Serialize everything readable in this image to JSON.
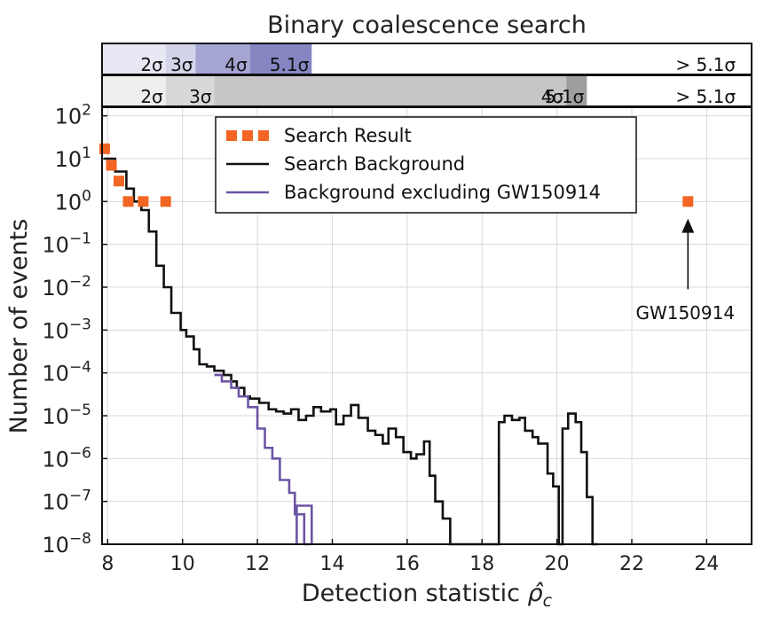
{
  "chart_data": {
    "type": "line",
    "title": "Binary coalescence search",
    "xlabel": "Detection statistic ρ̂_c",
    "ylabel": "Number of events",
    "xlim": [
      7.85,
      25.2
    ],
    "ylim_log10": [
      -8,
      2.2
    ],
    "y_scale": "log",
    "grid": true,
    "x_ticks": [
      8,
      10,
      12,
      14,
      16,
      18,
      20,
      22,
      24
    ],
    "y_tick_exponents": [
      2,
      1,
      0,
      -1,
      -2,
      -3,
      -4,
      -5,
      -6,
      -7,
      -8
    ],
    "legend": {
      "placement": "top-center",
      "entries": [
        "Search Result",
        "Search Background",
        "Background excluding GW150914"
      ]
    },
    "sigma_bands": [
      {
        "name": "upper",
        "labels": [
          "2σ",
          "3σ",
          "4σ",
          "5.1σ",
          "> 5.1σ"
        ],
        "regions": [
          {
            "x0": 7.85,
            "x1": 9.55,
            "color": "#e8e8f4"
          },
          {
            "x0": 9.55,
            "x1": 10.35,
            "color": "#d3d4ea"
          },
          {
            "x0": 10.35,
            "x1": 11.8,
            "color": "#a4a5d3"
          },
          {
            "x0": 11.8,
            "x1": 13.45,
            "color": "#8586c2"
          }
        ],
        "label_at": [
          9.55,
          10.35,
          11.8,
          13.45,
          24.0
        ]
      },
      {
        "name": "lower",
        "labels": [
          "2σ",
          "3σ",
          "4σ",
          "5.1σ",
          "> 5.1σ"
        ],
        "regions": [
          {
            "x0": 7.85,
            "x1": 9.55,
            "color": "#eeeeee"
          },
          {
            "x0": 9.55,
            "x1": 10.85,
            "color": "#d8d8d8"
          },
          {
            "x0": 10.85,
            "x1": 20.25,
            "color": "#c6c6c6"
          },
          {
            "x0": 20.25,
            "x1": 20.8,
            "color": "#9e9e9e"
          }
        ],
        "label_at": [
          9.55,
          10.85,
          20.25,
          20.8,
          24.0
        ]
      }
    ],
    "search_result": {
      "name": "Search Result",
      "color": "#f26522",
      "points": [
        {
          "x": 7.92,
          "y": 17
        },
        {
          "x": 8.1,
          "y": 7
        },
        {
          "x": 8.3,
          "y": 3
        },
        {
          "x": 8.55,
          "y": 1
        },
        {
          "x": 8.95,
          "y": 1
        },
        {
          "x": 9.55,
          "y": 1
        },
        {
          "x": 23.5,
          "y": 1
        }
      ]
    },
    "search_background": {
      "name": "Search Background",
      "color": "#111111",
      "steps": [
        [
          7.9,
          1.0
        ],
        [
          8.2,
          0.7
        ],
        [
          8.5,
          0.3
        ],
        [
          8.7,
          0.0
        ],
        [
          8.9,
          -0.2
        ],
        [
          9.1,
          -0.7
        ],
        [
          9.3,
          -1.5
        ],
        [
          9.5,
          -2.0
        ],
        [
          9.7,
          -2.6
        ],
        [
          9.95,
          -3.0
        ],
        [
          10.1,
          -3.15
        ],
        [
          10.3,
          -3.45
        ],
        [
          10.45,
          -3.8
        ],
        [
          10.65,
          -3.85
        ],
        [
          10.85,
          -3.95
        ],
        [
          11.1,
          -4.05
        ],
        [
          11.3,
          -4.2
        ],
        [
          11.45,
          -4.35
        ],
        [
          11.65,
          -4.55
        ],
        [
          11.8,
          -4.6
        ],
        [
          12.05,
          -4.7
        ],
        [
          12.3,
          -4.85
        ],
        [
          12.5,
          -4.9
        ],
        [
          12.7,
          -4.95
        ],
        [
          12.9,
          -4.85
        ],
        [
          13.1,
          -5.1
        ],
        [
          13.3,
          -5.0
        ],
        [
          13.5,
          -4.8
        ],
        [
          13.7,
          -4.9
        ],
        [
          13.95,
          -4.85
        ],
        [
          14.1,
          -5.2
        ],
        [
          14.3,
          -5.0
        ],
        [
          14.5,
          -4.75
        ],
        [
          14.7,
          -5.05
        ],
        [
          14.95,
          -5.35
        ],
        [
          15.15,
          -5.45
        ],
        [
          15.35,
          -5.65
        ],
        [
          15.5,
          -5.3
        ],
        [
          15.7,
          -5.5
        ],
        [
          15.9,
          -5.85
        ],
        [
          16.1,
          -6.0
        ],
        [
          16.25,
          -5.9
        ],
        [
          16.45,
          -5.6
        ],
        [
          16.6,
          -6.4
        ],
        [
          16.75,
          -7.0
        ],
        [
          16.95,
          -7.4
        ],
        [
          17.15,
          -8.0
        ],
        [
          18.3,
          -8.0
        ],
        [
          18.45,
          -5.15
        ],
        [
          18.6,
          -5.0
        ],
        [
          18.8,
          -5.1
        ],
        [
          19.0,
          -5.05
        ],
        [
          19.15,
          -5.35
        ],
        [
          19.35,
          -5.5
        ],
        [
          19.5,
          -5.65
        ],
        [
          19.75,
          -6.35
        ],
        [
          19.9,
          -6.65
        ],
        [
          20.05,
          -8.0
        ],
        [
          20.15,
          -5.3
        ],
        [
          20.3,
          -4.95
        ],
        [
          20.5,
          -5.15
        ],
        [
          20.65,
          -5.85
        ],
        [
          20.8,
          -6.9
        ],
        [
          20.95,
          -8.0
        ]
      ]
    },
    "background_excluding": {
      "name": "Background excluding GW150914",
      "color": "#6c55a4",
      "steps": [
        [
          10.85,
          -4.05
        ],
        [
          11.05,
          -4.2
        ],
        [
          11.3,
          -4.35
        ],
        [
          11.5,
          -4.55
        ],
        [
          11.75,
          -4.8
        ],
        [
          12.0,
          -5.3
        ],
        [
          12.2,
          -5.75
        ],
        [
          12.4,
          -6.0
        ],
        [
          12.6,
          -6.5
        ],
        [
          12.85,
          -6.8
        ],
        [
          13.0,
          -7.3
        ],
        [
          13.25,
          -8.0
        ]
      ]
    },
    "annotations": [
      {
        "text": "GW150914",
        "x": 23.5,
        "y_log10": -2.6,
        "arrow_to_log10": -0.4
      }
    ]
  }
}
